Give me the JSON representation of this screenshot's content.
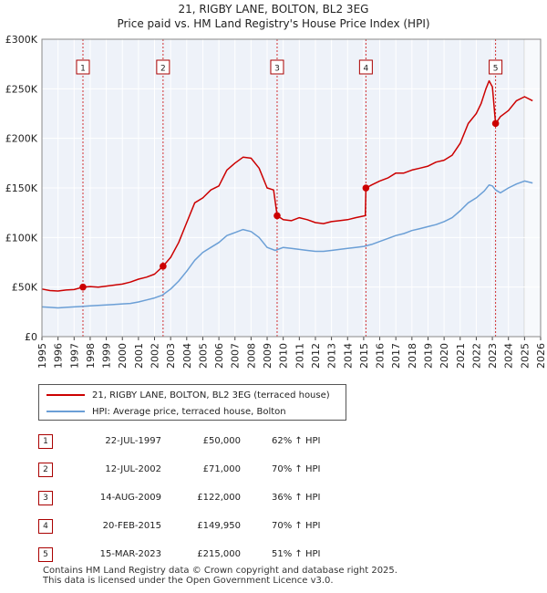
{
  "chart_data": {
    "type": "line",
    "title": "21, RIGBY LANE, BOLTON, BL2 3EG",
    "subtitle": "Price paid vs. HM Land Registry's House Price Index (HPI)",
    "xlim": [
      1995,
      2026
    ],
    "ylim": [
      0,
      300000
    ],
    "y_ticks": [
      0,
      50000,
      100000,
      150000,
      200000,
      250000,
      300000
    ],
    "y_tick_labels": [
      "£0",
      "£50K",
      "£100K",
      "£150K",
      "£200K",
      "£250K",
      "£300K"
    ],
    "x_ticks": [
      1995,
      1996,
      1997,
      1998,
      1999,
      2000,
      2001,
      2002,
      2003,
      2004,
      2005,
      2006,
      2007,
      2008,
      2009,
      2010,
      2011,
      2012,
      2013,
      2014,
      2015,
      2016,
      2017,
      2018,
      2019,
      2020,
      2021,
      2022,
      2023,
      2024,
      2025,
      2026
    ],
    "x_tick_labels": [
      "1995",
      "1996",
      "1997",
      "1998",
      "1999",
      "2000",
      "2001",
      "2002",
      "2003",
      "2004",
      "2005",
      "2006",
      "2007",
      "2008",
      "2009",
      "2010",
      "2011",
      "2012",
      "2013",
      "2014",
      "2015",
      "2016",
      "2017",
      "2018",
      "2019",
      "2020",
      "2021",
      "2022",
      "2023",
      "2024",
      "2025",
      "2026"
    ],
    "grid": true,
    "forecast_from": 2025.0,
    "series": [
      {
        "name": "21, RIGBY LANE, BOLTON, BL2 3EG (terraced house)",
        "color": "#cc0000",
        "x": [
          1995.0,
          1995.5,
          1996.0,
          1996.5,
          1997.0,
          1997.55,
          1998.0,
          1998.5,
          1999.0,
          1999.5,
          2000.0,
          2000.5,
          2001.0,
          2001.5,
          2002.0,
          2002.53,
          2003.0,
          2003.5,
          2004.0,
          2004.5,
          2005.0,
          2005.5,
          2006.0,
          2006.5,
          2007.0,
          2007.5,
          2008.0,
          2008.5,
          2009.0,
          2009.4,
          2009.62,
          2010.0,
          2010.5,
          2011.0,
          2011.5,
          2012.0,
          2012.5,
          2013.0,
          2013.5,
          2014.0,
          2014.5,
          2015.1,
          2015.14,
          2015.5,
          2016.0,
          2016.5,
          2017.0,
          2017.5,
          2018.0,
          2018.5,
          2019.0,
          2019.5,
          2020.0,
          2020.5,
          2021.0,
          2021.5,
          2022.0,
          2022.3,
          2022.6,
          2022.8,
          2023.0,
          2023.2,
          2023.5,
          2024.0,
          2024.5,
          2025.0,
          2025.5
        ],
        "y": [
          48000,
          46500,
          46000,
          47000,
          47500,
          50000,
          50500,
          50000,
          51000,
          52000,
          53000,
          55000,
          58000,
          60000,
          63000,
          71000,
          80000,
          95000,
          115000,
          135000,
          140000,
          148000,
          152000,
          168000,
          175000,
          181000,
          180000,
          170000,
          150000,
          148000,
          122000,
          118000,
          117000,
          120000,
          118000,
          115000,
          114000,
          116000,
          117000,
          118000,
          120000,
          122000,
          149950,
          153000,
          157000,
          160000,
          165000,
          165000,
          168000,
          170000,
          172000,
          176000,
          178000,
          183000,
          195000,
          215000,
          225000,
          235000,
          250000,
          258000,
          252000,
          215000,
          222000,
          228000,
          238000,
          242000,
          238000
        ]
      },
      {
        "name": "HPI: Average price, terraced house, Bolton",
        "color": "#6b9fd6",
        "x": [
          1995.0,
          1995.5,
          1996.0,
          1996.5,
          1997.0,
          1997.5,
          1998.0,
          1998.5,
          1999.0,
          1999.5,
          2000.0,
          2000.5,
          2001.0,
          2001.5,
          2002.0,
          2002.5,
          2003.0,
          2003.5,
          2004.0,
          2004.5,
          2005.0,
          2005.5,
          2006.0,
          2006.5,
          2007.0,
          2007.5,
          2008.0,
          2008.5,
          2009.0,
          2009.5,
          2010.0,
          2010.5,
          2011.0,
          2011.5,
          2012.0,
          2012.5,
          2013.0,
          2013.5,
          2014.0,
          2014.5,
          2015.0,
          2015.5,
          2016.0,
          2016.5,
          2017.0,
          2017.5,
          2018.0,
          2018.5,
          2019.0,
          2019.5,
          2020.0,
          2020.5,
          2021.0,
          2021.5,
          2022.0,
          2022.5,
          2022.8,
          2023.0,
          2023.2,
          2023.5,
          2024.0,
          2024.5,
          2025.0,
          2025.5
        ],
        "y": [
          30000,
          29500,
          29000,
          29500,
          30000,
          30500,
          31000,
          31500,
          32000,
          32500,
          33000,
          33500,
          35000,
          37000,
          39000,
          42000,
          48000,
          56000,
          66000,
          77000,
          85000,
          90000,
          95000,
          102000,
          105000,
          108000,
          106000,
          100000,
          90000,
          87000,
          90000,
          89000,
          88000,
          87000,
          86000,
          86000,
          87000,
          88000,
          89000,
          90000,
          91000,
          93000,
          96000,
          99000,
          102000,
          104000,
          107000,
          109000,
          111000,
          113000,
          116000,
          120000,
          127000,
          135000,
          140000,
          147000,
          153000,
          152000,
          148000,
          145000,
          150000,
          154000,
          157000,
          155000
        ]
      }
    ],
    "transactions": [
      {
        "num": "1",
        "x": 1997.55,
        "y": 50000
      },
      {
        "num": "2",
        "x": 2002.53,
        "y": 71000
      },
      {
        "num": "3",
        "x": 2009.62,
        "y": 122000
      },
      {
        "num": "4",
        "x": 2015.14,
        "y": 149950
      },
      {
        "num": "5",
        "x": 2023.2,
        "y": 215000
      }
    ]
  },
  "legend": {
    "property": "21, RIGBY LANE, BOLTON, BL2 3EG (terraced house)",
    "hpi": "HPI: Average price, terraced house, Bolton"
  },
  "table": [
    {
      "num": "1",
      "date": "22-JUL-1997",
      "price": "£50,000",
      "hpi": "62% ↑ HPI"
    },
    {
      "num": "2",
      "date": "12-JUL-2002",
      "price": "£71,000",
      "hpi": "70% ↑ HPI"
    },
    {
      "num": "3",
      "date": "14-AUG-2009",
      "price": "£122,000",
      "hpi": "36% ↑ HPI"
    },
    {
      "num": "4",
      "date": "20-FEB-2015",
      "price": "£149,950",
      "hpi": "70% ↑ HPI"
    },
    {
      "num": "5",
      "date": "15-MAR-2023",
      "price": "£215,000",
      "hpi": "51% ↑ HPI"
    }
  ],
  "footer": {
    "line1": "Contains HM Land Registry data © Crown copyright and database right 2025.",
    "line2": "This data is licensed under the Open Government Licence v3.0."
  },
  "colors": {
    "property_line": "#cc0000",
    "hpi_line": "#6b9fd6",
    "marker_box": "#aa0000",
    "plot_bg": "#eef2f9",
    "grid": "#ffffff"
  }
}
